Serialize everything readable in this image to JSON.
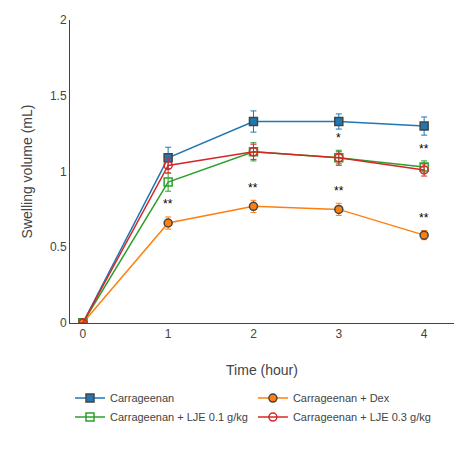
{
  "chart_data": {
    "type": "line",
    "x": [
      0,
      1,
      2,
      3,
      4
    ],
    "series": [
      {
        "name": "Carrageenan",
        "values": [
          0,
          1.09,
          1.33,
          1.33,
          1.3
        ],
        "yerr": [
          0,
          0.07,
          0.07,
          0.05,
          0.06
        ],
        "marker": "square",
        "line_style": "solid"
      },
      {
        "name": "Carrageenan + Dex",
        "values": [
          0,
          0.66,
          0.77,
          0.75,
          0.58
        ],
        "yerr": [
          0,
          0.04,
          0.04,
          0.04,
          0.03
        ],
        "marker": "circle",
        "line_style": "solid"
      },
      {
        "name": "Carrageenan + LJE 0.1 g/kg",
        "values": [
          0,
          0.93,
          1.13,
          1.09,
          1.03
        ],
        "yerr": [
          0,
          0.06,
          0.06,
          0.05,
          0.04
        ],
        "marker": "square-open",
        "line_style": "solid"
      },
      {
        "name": "Carrageenan + LJE 0.3 g/kg",
        "values": [
          0,
          1.04,
          1.13,
          1.09,
          1.01
        ],
        "yerr": [
          0,
          0.05,
          0.05,
          0.04,
          0.04
        ],
        "marker": "circle-open",
        "line_style": "solid"
      }
    ],
    "annotations": [
      {
        "text": "**",
        "x": 1,
        "y": 0.725
      },
      {
        "text": "**",
        "x": 2,
        "y": 0.83
      },
      {
        "text": "**",
        "x": 3,
        "y": 0.81
      },
      {
        "text": "**",
        "x": 4,
        "y": 0.635
      },
      {
        "text": "*",
        "x": 3,
        "y": 1.16
      },
      {
        "text": "**",
        "x": 4,
        "y": 1.09
      }
    ],
    "x_label": "Time (hour)",
    "y_label": "Swelling volume (mL)",
    "xlim": [
      -0.15,
      4.35
    ],
    "ylim": [
      0,
      2.0
    ],
    "xticks": [
      0,
      1,
      2,
      3,
      4
    ],
    "yticks": [
      0,
      0.5,
      1.0,
      1.5,
      2.0
    ],
    "grid": false,
    "legend": "bottom"
  }
}
